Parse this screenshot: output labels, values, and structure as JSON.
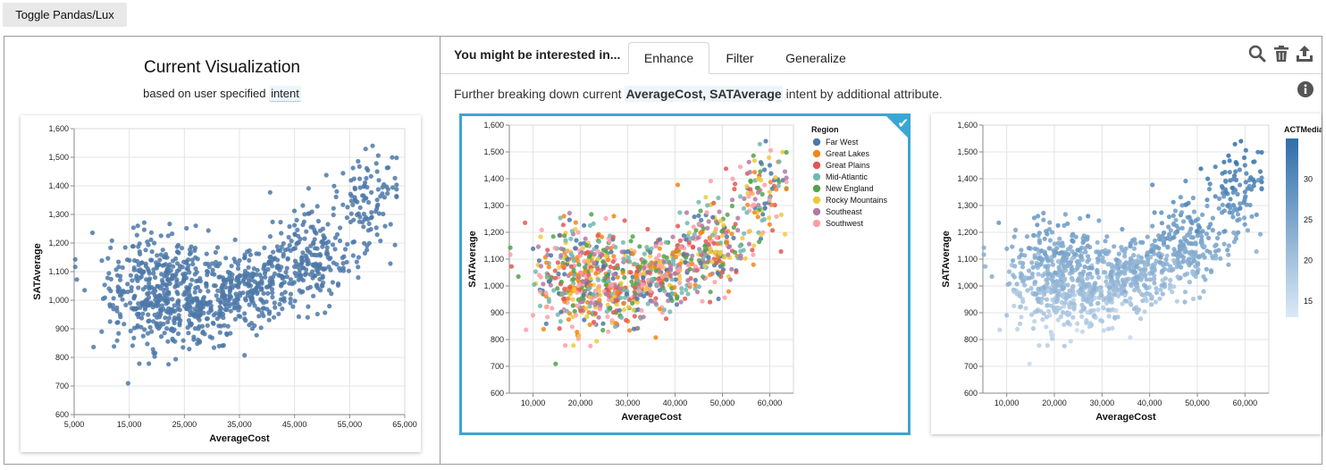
{
  "toggle_button": "Toggle Pandas/Lux",
  "current_vis": {
    "title": "Current Visualization",
    "subtitle_prefix": "based on user specified",
    "intent_label": "intent"
  },
  "recommendations": {
    "hint": "You might be interested in...",
    "tabs": [
      {
        "label": "Enhance",
        "active": true
      },
      {
        "label": "Filter",
        "active": false
      },
      {
        "label": "Generalize",
        "active": false
      }
    ],
    "description_prefix": "Further breaking down current",
    "description_attrs": "AverageCost, SATAverage",
    "description_suffix": "intent by additional attribute.",
    "icons": [
      "search-icon",
      "trash-icon",
      "export-icon",
      "info-icon"
    ],
    "selected_check": "✔"
  },
  "chart_data": [
    {
      "type": "scatter",
      "xlabel": "AverageCost",
      "ylabel": "SATAverage",
      "xlim": [
        5000,
        65000
      ],
      "ylim": [
        600,
        1600
      ],
      "xticks": [
        "5,000",
        "15,000",
        "25,000",
        "35,000",
        "45,000",
        "55,000",
        "65,000"
      ],
      "yticks": [
        "600",
        "700",
        "800",
        "900",
        "1,000",
        "1,100",
        "1,200",
        "1,300",
        "1,400",
        "1,500",
        "1,600"
      ],
      "color": "#4c78a8",
      "n_points": 1100
    },
    {
      "type": "scatter",
      "xlabel": "AverageCost",
      "ylabel": "SATAverage",
      "xlim": [
        5000,
        65000
      ],
      "ylim": [
        600,
        1600
      ],
      "xticks": [
        "10,000",
        "20,000",
        "30,000",
        "40,000",
        "50,000",
        "60,000"
      ],
      "yticks": [
        "600",
        "700",
        "800",
        "900",
        "1,000",
        "1,100",
        "1,200",
        "1,300",
        "1,400",
        "1,500",
        "1,600"
      ],
      "legend": {
        "title": "Region",
        "entries": [
          {
            "name": "Far West",
            "color": "#4c78a8"
          },
          {
            "name": "Great Lakes",
            "color": "#f58518"
          },
          {
            "name": "Great Plains",
            "color": "#e45756"
          },
          {
            "name": "Mid-Atlantic",
            "color": "#72b7b2"
          },
          {
            "name": "New England",
            "color": "#54a24b"
          },
          {
            "name": "Rocky Mountains",
            "color": "#eeca3b"
          },
          {
            "name": "Southeast",
            "color": "#b279a2"
          },
          {
            "name": "Southwest",
            "color": "#ff9da6"
          }
        ],
        "position": "top-right"
      },
      "n_points": 1100
    },
    {
      "type": "scatter",
      "xlabel": "AverageCost",
      "ylabel": "SATAverage",
      "xlim": [
        5000,
        65000
      ],
      "ylim": [
        600,
        1600
      ],
      "xticks": [
        "10,000",
        "20,000",
        "30,000",
        "40,000",
        "50,000",
        "60,000"
      ],
      "yticks": [
        "600",
        "700",
        "800",
        "900",
        "1,000",
        "1,100",
        "1,200",
        "1,300",
        "1,400",
        "1,500",
        "1,600"
      ],
      "color_legend": {
        "title": "ACTMedian",
        "ticks": [
          "15",
          "20",
          "25",
          "30"
        ],
        "range": [
          13,
          35
        ],
        "color_low": "#dbe9f6",
        "color_high": "#2f6ea8",
        "position": "right"
      },
      "n_points": 1100
    }
  ]
}
